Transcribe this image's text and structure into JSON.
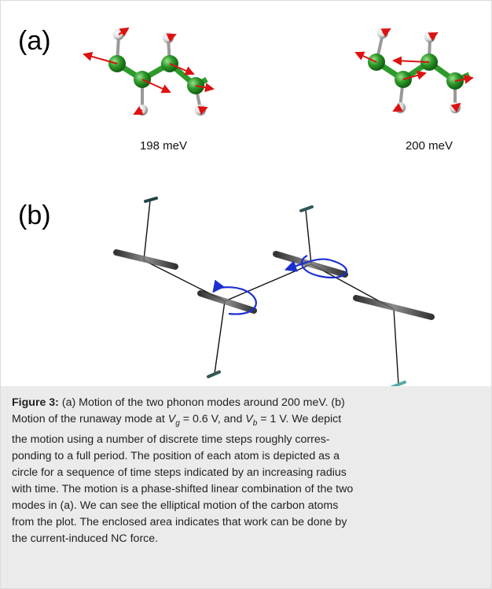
{
  "figure": {
    "panel_a": {
      "label": "(a)",
      "mode_left": "198 meV",
      "mode_right": "200 meV"
    },
    "panel_b": {
      "label": "(b)"
    }
  },
  "caption": {
    "label": "Figure 3:",
    "lines": [
      " (a) Motion of the two phonon modes around 200 meV. (b)",
      [
        "Motion of the runaway mode at ",
        "V",
        "g",
        " = 0.6 V, and ",
        "V",
        "b",
        " = 1 V. We depict"
      ],
      "the motion using a number of discrete time steps roughly corres-",
      "ponding to a full period. The position of each atom is depicted as a",
      "circle for a sequence of time steps indicated by an increasing radius",
      "with time. The motion is a phase-shifted linear combination of the two",
      "modes in (a). We can see the elliptical motion of the carbon atoms",
      "from the plot. The enclosed area indicates that work can be done by",
      "the current-induced NC force."
    ]
  }
}
